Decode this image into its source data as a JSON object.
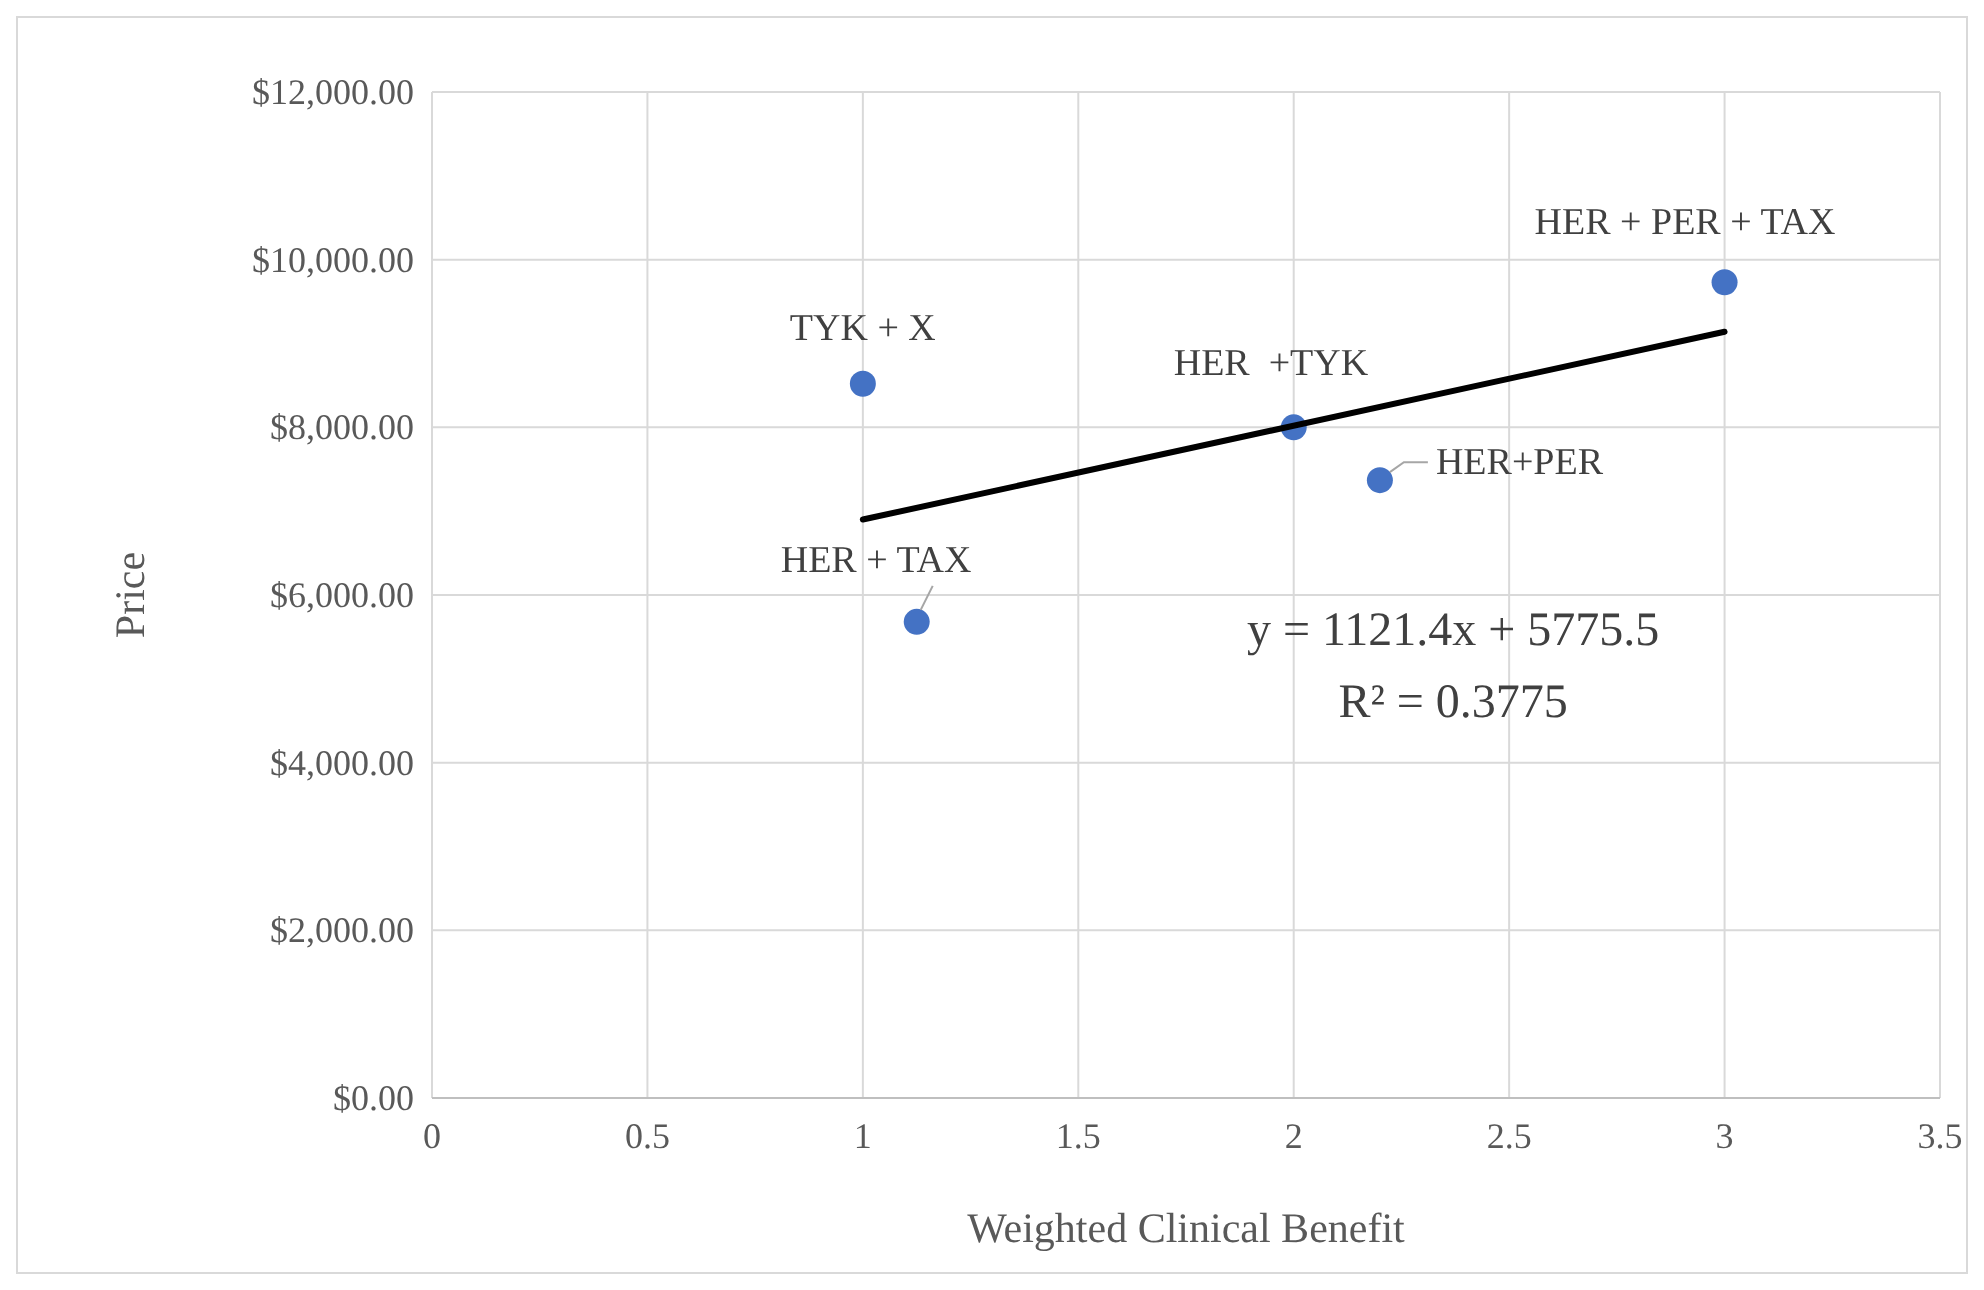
{
  "chart_data": {
    "type": "scatter",
    "xlabel": "Weighted Clinical Benefit",
    "ylabel": "Price",
    "xlim": [
      0,
      3.5
    ],
    "xticks": [
      0,
      0.5,
      1,
      1.5,
      2,
      2.5,
      3,
      3.5
    ],
    "ylim": [
      0,
      12000
    ],
    "yticks": [
      {
        "value": 0,
        "label": "$0.00"
      },
      {
        "value": 2000,
        "label": "$2,000.00"
      },
      {
        "value": 4000,
        "label": "$4,000.00"
      },
      {
        "value": 6000,
        "label": "$6,000.00"
      },
      {
        "value": 8000,
        "label": "$8,000.00"
      },
      {
        "value": 10000,
        "label": "$10,000.00"
      },
      {
        "value": 12000,
        "label": "$12,000.00"
      }
    ],
    "grid": true,
    "marker": "circle",
    "series": [
      {
        "color": "#4472c4",
        "x": [
          1,
          1.125,
          2,
          2.2,
          3
        ],
        "values": [
          8520,
          5680,
          8000,
          7370,
          9730
        ]
      },
      {
        "type": "line",
        "marker": "none",
        "color": "#000000",
        "x": [
          1,
          3
        ],
        "values": [
          6900,
          9140
        ]
      }
    ],
    "annotations": [
      {
        "text": "TYK + X",
        "x": 1,
        "y": 8520
      },
      {
        "text": "HER + TAX",
        "x": 1.125,
        "y": 5680
      },
      {
        "text": "HER  +TYK",
        "x": 2,
        "y": 8000
      },
      {
        "text": "HER+PER",
        "x": 2.2,
        "y": 7370
      },
      {
        "text": "HER + PER + TAX",
        "x": 3,
        "y": 9730
      },
      "y = 1121.4x + 5775.5",
      "R² = 0.3775"
    ]
  }
}
